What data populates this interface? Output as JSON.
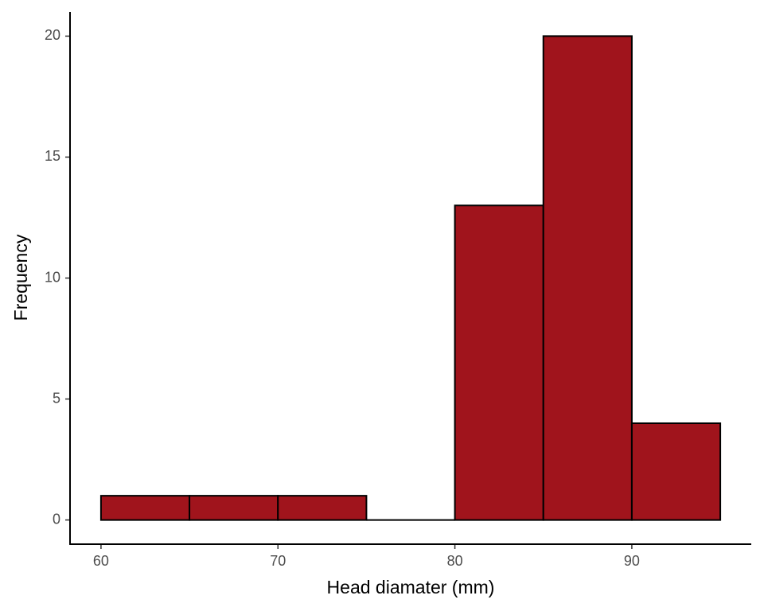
{
  "chart_data": {
    "type": "histogram",
    "x_label": "Head diamater (mm)",
    "y_label": "Frequency",
    "bins": [
      60,
      65,
      70,
      75,
      80,
      85,
      90,
      95
    ],
    "values": [
      1,
      1,
      1,
      0,
      13,
      20,
      4
    ],
    "color": "#a0141c",
    "edge_color": "#000000",
    "xlim": [
      58.25,
      96.75
    ],
    "ylim": [
      -1,
      21
    ],
    "xticks": [
      60,
      70,
      80,
      90
    ],
    "yticks": [
      0,
      5,
      10,
      15,
      20
    ],
    "grid": false
  }
}
